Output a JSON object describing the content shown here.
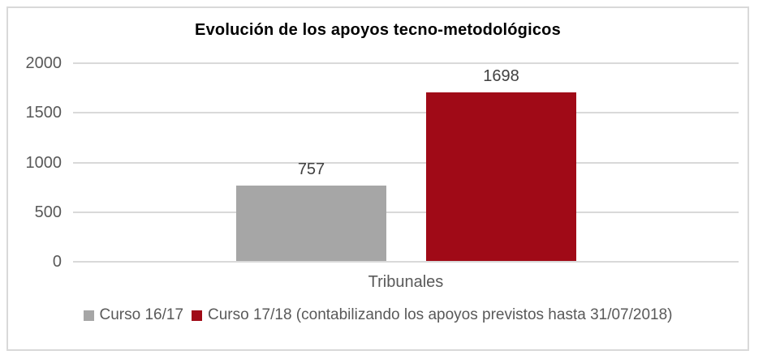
{
  "chart_data": {
    "type": "bar",
    "title": "Evolución de los apoyos tecno-metodológicos",
    "categories": [
      "Tribunales"
    ],
    "series": [
      {
        "name": "Curso 16/17",
        "color": "#a6a6a6",
        "values": [
          757
        ]
      },
      {
        "name": "Curso 17/18 (contabilizando los apoyos previstos hasta 31/07/2018)",
        "color": "#a00a17",
        "values": [
          1698
        ]
      }
    ],
    "ylim": [
      0,
      2000
    ],
    "yticks": [
      2000,
      1500,
      1000,
      500,
      0
    ],
    "grid": true,
    "legend_position": "bottom",
    "xlabel": "",
    "ylabel": ""
  },
  "colors": {
    "frame_border": "#d9d9d9",
    "gridline": "#d9d9d9",
    "axis_text": "#595959",
    "data_label_text": "#404040",
    "title_text": "#000000",
    "background": "#ffffff"
  }
}
